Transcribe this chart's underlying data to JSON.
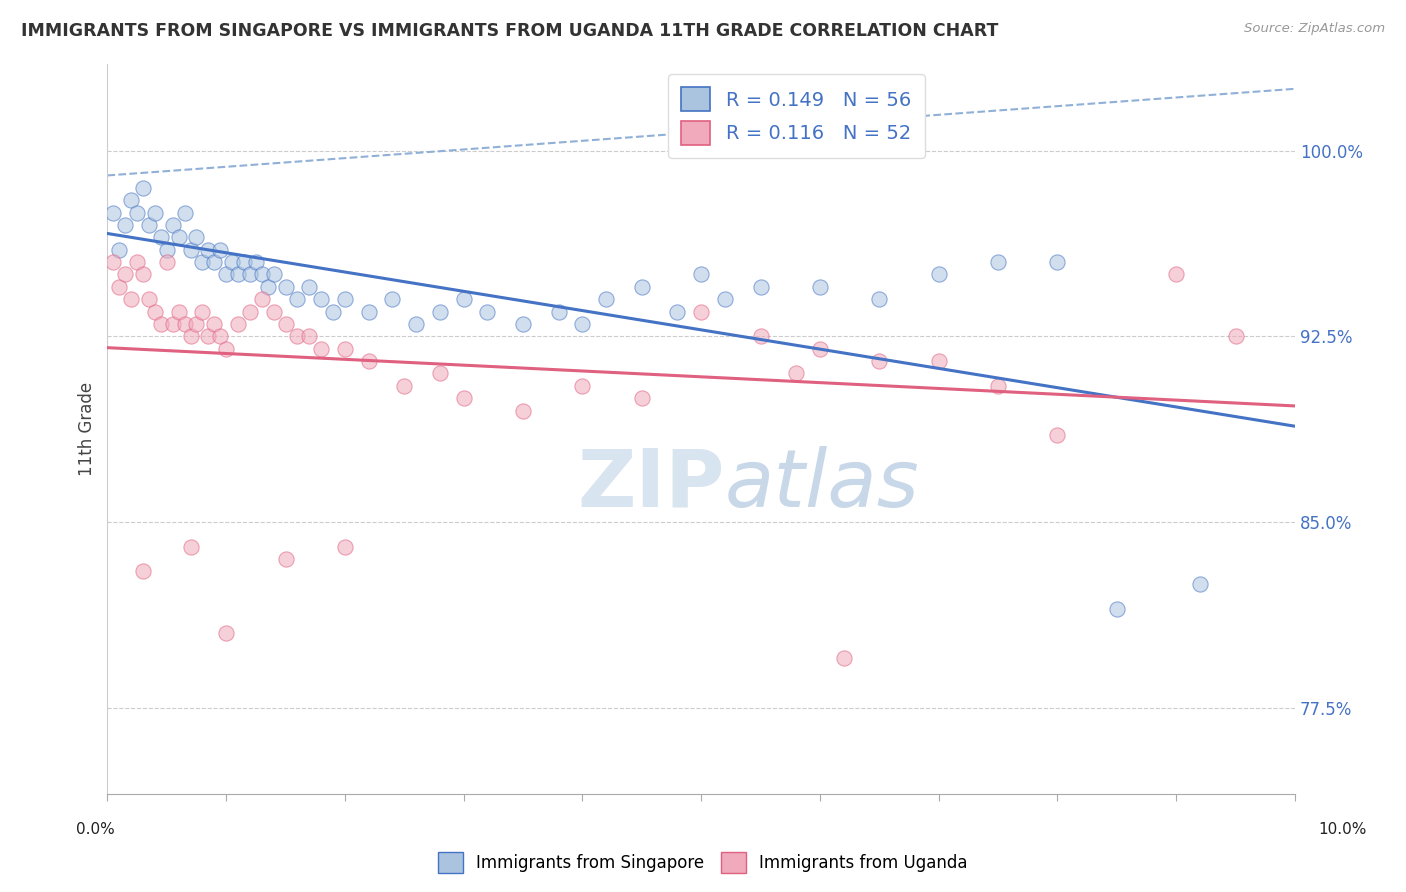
{
  "title": "IMMIGRANTS FROM SINGAPORE VS IMMIGRANTS FROM UGANDA 11TH GRADE CORRELATION CHART",
  "source": "Source: ZipAtlas.com",
  "ylabel": "11th Grade",
  "yticks": [
    77.5,
    85.0,
    92.5,
    100.0
  ],
  "ytick_labels": [
    "77.5%",
    "85.0%",
    "92.5%",
    "100.0%"
  ],
  "xlim": [
    0.0,
    10.0
  ],
  "ylim": [
    74.0,
    103.5
  ],
  "watermark_zip": "ZIP",
  "watermark_atlas": "atlas",
  "legend_r1": "R = 0.149",
  "legend_n1": "N = 56",
  "legend_r2": "R = 0.116",
  "legend_n2": "N = 52",
  "color_singapore": "#aac4e0",
  "color_uganda": "#f0aabb",
  "color_singapore_line": "#4472c4",
  "color_uganda_line": "#e06080",
  "color_dashed_top": "#90b0d8",
  "singapore_x": [
    0.05,
    0.1,
    0.15,
    0.2,
    0.25,
    0.3,
    0.35,
    0.4,
    0.45,
    0.5,
    0.55,
    0.6,
    0.65,
    0.7,
    0.75,
    0.8,
    0.85,
    0.9,
    0.95,
    1.0,
    1.05,
    1.1,
    1.15,
    1.2,
    1.25,
    1.3,
    1.35,
    1.4,
    1.5,
    1.6,
    1.7,
    1.8,
    1.9,
    2.0,
    2.2,
    2.4,
    2.6,
    2.8,
    3.0,
    3.2,
    3.5,
    3.8,
    4.0,
    4.2,
    4.5,
    4.8,
    5.0,
    5.2,
    5.5,
    6.0,
    6.5,
    7.0,
    7.5,
    8.0,
    8.5,
    9.2
  ],
  "singapore_y": [
    97.5,
    96.0,
    97.0,
    98.0,
    97.5,
    98.5,
    97.0,
    97.5,
    96.5,
    96.0,
    97.0,
    96.5,
    97.5,
    96.0,
    96.5,
    95.5,
    96.0,
    95.5,
    96.0,
    95.0,
    95.5,
    95.0,
    95.5,
    95.0,
    95.5,
    95.0,
    94.5,
    95.0,
    94.5,
    94.0,
    94.5,
    94.0,
    93.5,
    94.0,
    93.5,
    94.0,
    93.0,
    93.5,
    94.0,
    93.5,
    93.0,
    93.5,
    93.0,
    94.0,
    94.5,
    93.5,
    95.0,
    94.0,
    94.5,
    94.5,
    94.0,
    95.0,
    95.5,
    95.5,
    81.5,
    82.5
  ],
  "uganda_x": [
    0.05,
    0.1,
    0.15,
    0.2,
    0.25,
    0.3,
    0.35,
    0.4,
    0.45,
    0.5,
    0.55,
    0.6,
    0.65,
    0.7,
    0.75,
    0.8,
    0.85,
    0.9,
    0.95,
    1.0,
    1.1,
    1.2,
    1.3,
    1.4,
    1.5,
    1.6,
    1.7,
    1.8,
    2.0,
    2.2,
    2.5,
    2.8,
    3.0,
    3.5,
    4.0,
    4.5,
    5.0,
    5.5,
    6.0,
    6.5,
    7.0,
    7.5,
    8.0,
    9.0,
    9.5,
    0.3,
    0.7,
    1.0,
    1.5,
    2.0,
    5.8,
    6.2
  ],
  "uganda_y": [
    95.5,
    94.5,
    95.0,
    94.0,
    95.5,
    95.0,
    94.0,
    93.5,
    93.0,
    95.5,
    93.0,
    93.5,
    93.0,
    92.5,
    93.0,
    93.5,
    92.5,
    93.0,
    92.5,
    92.0,
    93.0,
    93.5,
    94.0,
    93.5,
    93.0,
    92.5,
    92.5,
    92.0,
    92.0,
    91.5,
    90.5,
    91.0,
    90.0,
    89.5,
    90.5,
    90.0,
    93.5,
    92.5,
    92.0,
    91.5,
    91.5,
    90.5,
    88.5,
    95.0,
    92.5,
    83.0,
    84.0,
    80.5,
    83.5,
    84.0,
    91.0,
    79.5
  ]
}
